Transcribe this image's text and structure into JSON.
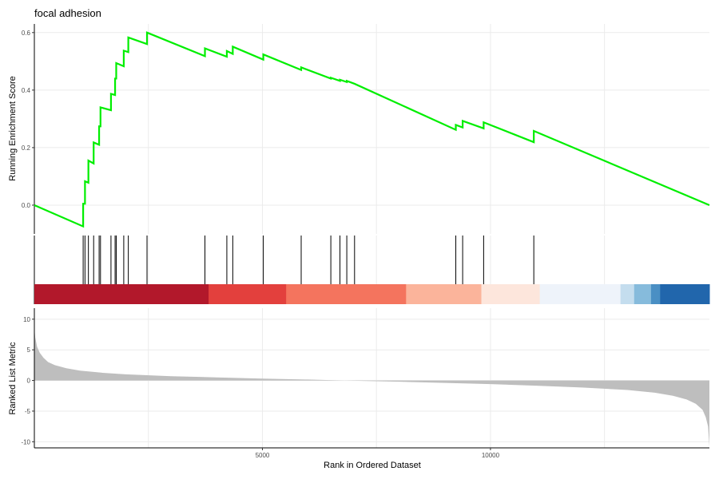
{
  "chart_data": {
    "type": "line",
    "title": "focal adhesion",
    "xlabel": "Rank in Ordered Dataset",
    "xlim": [
      0,
      14800
    ],
    "x_ticks": [
      5000,
      10000
    ],
    "x_tick_labels": [
      "5000",
      "10000"
    ],
    "x_gridlines": [
      2500,
      5000,
      7500,
      10000,
      12500
    ],
    "colors": {
      "curve": "#00ee00",
      "hit_line": "#000000",
      "metric_fill": "#bebebe",
      "axis": "#000000",
      "grid": "#ebebeb"
    },
    "enrichment": {
      "ylabel": "Running Enrichment Score",
      "ylim": [
        -0.1,
        0.63
      ],
      "y_ticks": [
        0.0,
        0.2,
        0.4,
        0.6
      ],
      "y_tick_labels": [
        "0.0",
        "0.2",
        "0.4",
        "0.6"
      ],
      "points": [
        [
          0,
          0.0
        ],
        [
          1070,
          -0.074
        ],
        [
          1070,
          0.005
        ],
        [
          1110,
          0.005
        ],
        [
          1110,
          0.083
        ],
        [
          1185,
          0.078
        ],
        [
          1185,
          0.155
        ],
        [
          1300,
          0.145
        ],
        [
          1300,
          0.218
        ],
        [
          1420,
          0.21
        ],
        [
          1420,
          0.274
        ],
        [
          1450,
          0.274
        ],
        [
          1450,
          0.34
        ],
        [
          1680,
          0.33
        ],
        [
          1680,
          0.387
        ],
        [
          1770,
          0.383
        ],
        [
          1770,
          0.44
        ],
        [
          1795,
          0.44
        ],
        [
          1795,
          0.494
        ],
        [
          1960,
          0.483
        ],
        [
          1960,
          0.537
        ],
        [
          2060,
          0.532
        ],
        [
          2060,
          0.583
        ],
        [
          2470,
          0.56
        ],
        [
          2470,
          0.6
        ],
        [
          3740,
          0.518
        ],
        [
          3740,
          0.545
        ],
        [
          4220,
          0.516
        ],
        [
          4220,
          0.536
        ],
        [
          4350,
          0.526
        ],
        [
          4350,
          0.551
        ],
        [
          5020,
          0.506
        ],
        [
          5020,
          0.524
        ],
        [
          5850,
          0.47
        ],
        [
          5850,
          0.479
        ],
        [
          6500,
          0.44
        ],
        [
          6500,
          0.443
        ],
        [
          6700,
          0.432
        ],
        [
          6700,
          0.436
        ],
        [
          6850,
          0.428
        ],
        [
          6850,
          0.432
        ],
        [
          7020,
          0.422
        ],
        [
          9240,
          0.262
        ],
        [
          9240,
          0.279
        ],
        [
          9390,
          0.27
        ],
        [
          9390,
          0.293
        ],
        [
          9850,
          0.267
        ],
        [
          9850,
          0.288
        ],
        [
          10950,
          0.219
        ],
        [
          10950,
          0.258
        ],
        [
          14800,
          0.0
        ]
      ]
    },
    "hits": {
      "positions": [
        1070,
        1110,
        1185,
        1300,
        1420,
        1450,
        1680,
        1770,
        1795,
        1960,
        2060,
        2470,
        3740,
        4220,
        4350,
        5020,
        5850,
        6500,
        6700,
        6850,
        7020,
        9240,
        9390,
        9850,
        10950
      ]
    },
    "rank_bar": {
      "segments": [
        {
          "start": 0,
          "end": 3820,
          "color": "#b2182b"
        },
        {
          "start": 3820,
          "end": 5520,
          "color": "#e3403d"
        },
        {
          "start": 5520,
          "end": 8150,
          "color": "#f4745e"
        },
        {
          "start": 8150,
          "end": 9800,
          "color": "#fbb49b"
        },
        {
          "start": 9800,
          "end": 11080,
          "color": "#fde6dc"
        },
        {
          "start": 11080,
          "end": 12850,
          "color": "#eef3fa"
        },
        {
          "start": 12850,
          "end": 13150,
          "color": "#c4ddee"
        },
        {
          "start": 13150,
          "end": 13520,
          "color": "#86bbdc"
        },
        {
          "start": 13520,
          "end": 13720,
          "color": "#4a8fc4"
        },
        {
          "start": 13720,
          "end": 14800,
          "color": "#2166ac"
        }
      ]
    },
    "ranked_metric": {
      "ylabel": "Ranked List Metric",
      "ylim": [
        -11,
        11.8
      ],
      "y_ticks": [
        10,
        5,
        0,
        -5,
        -10
      ],
      "y_tick_labels": [
        "10",
        "5",
        "0",
        "-5",
        "-10"
      ],
      "upper_curve": [
        [
          0,
          8.5
        ],
        [
          20,
          7.0
        ],
        [
          60,
          5.5
        ],
        [
          120,
          4.5
        ],
        [
          200,
          3.7
        ],
        [
          300,
          3.0
        ],
        [
          450,
          2.5
        ],
        [
          700,
          2.0
        ],
        [
          1000,
          1.6
        ],
        [
          1500,
          1.25
        ],
        [
          2000,
          1.0
        ],
        [
          3000,
          0.7
        ],
        [
          4000,
          0.5
        ],
        [
          5000,
          0.3
        ],
        [
          6000,
          0.15
        ],
        [
          6800,
          0.0
        ]
      ],
      "lower_curve": [
        [
          6800,
          0.0
        ],
        [
          8000,
          -0.2
        ],
        [
          9000,
          -0.4
        ],
        [
          10000,
          -0.6
        ],
        [
          11000,
          -0.85
        ],
        [
          12000,
          -1.15
        ],
        [
          13000,
          -1.55
        ],
        [
          13600,
          -2.0
        ],
        [
          14000,
          -2.5
        ],
        [
          14300,
          -3.1
        ],
        [
          14500,
          -3.8
        ],
        [
          14650,
          -4.8
        ],
        [
          14720,
          -6.0
        ],
        [
          14770,
          -7.5
        ],
        [
          14800,
          -10.8
        ]
      ]
    }
  }
}
